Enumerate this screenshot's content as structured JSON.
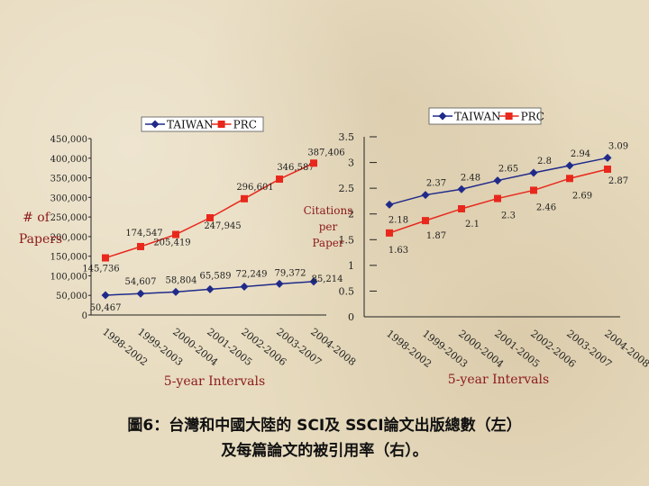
{
  "colors": {
    "taiwan": "#1f2a8a",
    "prc": "#e8281c",
    "axis": "#222222",
    "label_red": "#8b1a1a",
    "label_dark": "#222222"
  },
  "chart_data": [
    {
      "type": "line",
      "title": "",
      "xlabel": "5-year Intervals",
      "ylabel": "# of Papers",
      "ylim": [
        0,
        450000
      ],
      "yticks": [
        0,
        50000,
        100000,
        150000,
        200000,
        250000,
        300000,
        350000,
        400000,
        450000
      ],
      "ytick_labels": [
        "0",
        "50,000",
        "100,000",
        "150,000",
        "200,000",
        "250,000",
        "300,000",
        "350,000",
        "400,000",
        "450,000"
      ],
      "categories": [
        "1998-2002",
        "1999-2003",
        "2000-2004",
        "2001-2005",
        "2002-2006",
        "2003-2007",
        "2004-2008"
      ],
      "legend": "top",
      "grid": false,
      "series": [
        {
          "name": "TAIWAN",
          "color": "#1f2a8a",
          "values": [
            50467,
            54607,
            58804,
            65589,
            72249,
            79372,
            85214
          ],
          "labels": [
            "50,467",
            "54,607",
            "58,804",
            "65,589",
            "72,249",
            "79,372",
            "85,214"
          ]
        },
        {
          "name": "PRC",
          "color": "#e8281c",
          "values": [
            145736,
            174547,
            205419,
            247945,
            296601,
            346587,
            387406
          ],
          "labels": [
            "145,736",
            "174,547",
            "205,419",
            "247,945",
            "296,601",
            "346,587",
            "387,406"
          ]
        }
      ]
    },
    {
      "type": "line",
      "title": "",
      "xlabel": "5-year Intervals",
      "ylabel": "Citations per Paper",
      "ylim": [
        0,
        3.5
      ],
      "yticks": [
        0,
        0.5,
        1,
        1.5,
        2,
        2.5,
        3,
        3.5
      ],
      "ytick_labels": [
        "0",
        "0.5",
        "1",
        "1.5",
        "2",
        "2.5",
        "3",
        "3.5"
      ],
      "categories": [
        "1998-2002",
        "1999-2003",
        "2000-2004",
        "2001-2005",
        "2002-2006",
        "2003-2007",
        "2004-2008"
      ],
      "legend": "top",
      "grid": false,
      "series": [
        {
          "name": "TAIWAN",
          "color": "#1f2a8a",
          "values": [
            2.18,
            2.37,
            2.48,
            2.65,
            2.8,
            2.94,
            3.09
          ],
          "labels": [
            "2.18",
            "2.37",
            "2.48",
            "2.65",
            "2.8",
            "2.94",
            "3.09"
          ]
        },
        {
          "name": "PRC",
          "color": "#e8281c",
          "values": [
            1.63,
            1.87,
            2.1,
            2.3,
            2.46,
            2.69,
            2.87
          ],
          "labels": [
            "1.63",
            "1.87",
            "2.1",
            "2.3",
            "2.46",
            "2.69",
            "2.87"
          ]
        }
      ]
    }
  ],
  "caption": {
    "line1": "圖6：台灣和中國大陸的 SCI及 SSCI論文出版總數（左）",
    "line2": "及每篇論文的被引用率（右）。"
  }
}
